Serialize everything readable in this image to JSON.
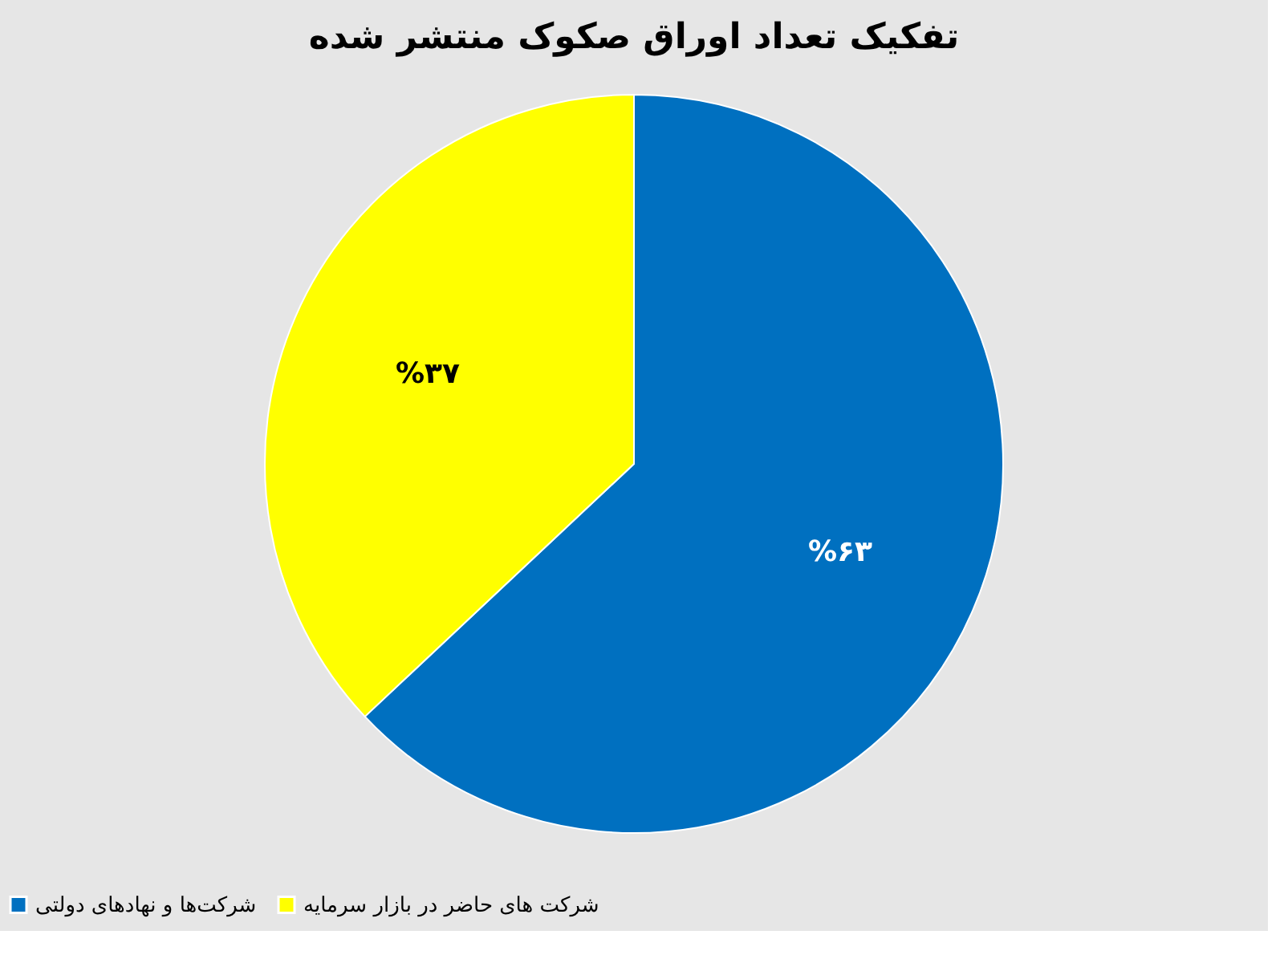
{
  "chart_data": {
    "type": "pie",
    "title": "تفکیک تعداد اوراق صکوک منتشر شده",
    "categories": [
      "شرکت‌ها و نهادهای دولتی",
      "شرکت های حاضر در بازار سرمایه"
    ],
    "values": [
      63,
      37
    ],
    "colors": [
      "#0070c0",
      "#ffff00"
    ],
    "value_labels": [
      "%۶۳",
      "%۳۷"
    ],
    "legend": "bottom"
  }
}
